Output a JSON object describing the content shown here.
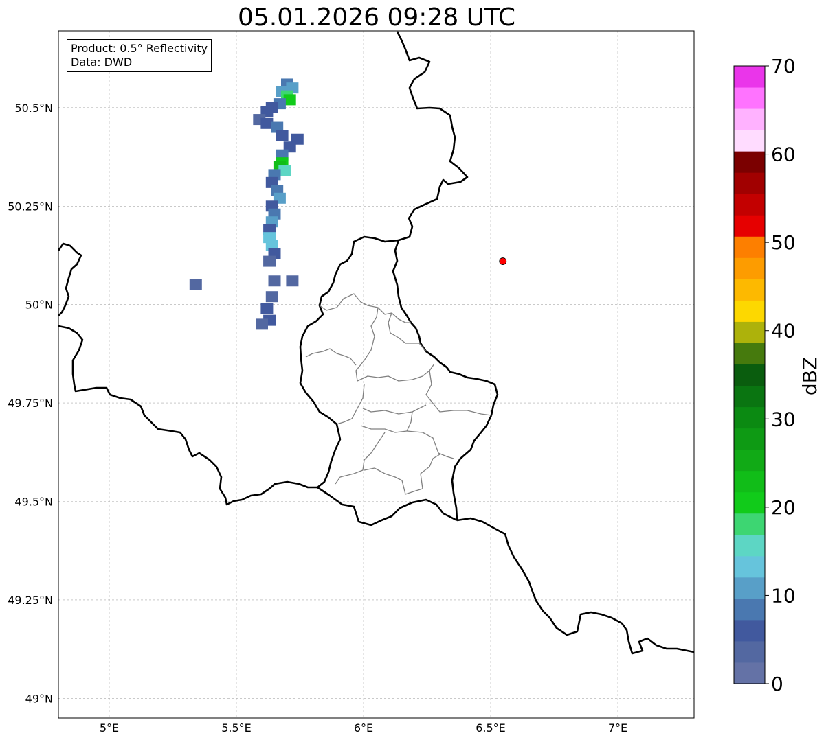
{
  "title": "05.01.2026 09:28 UTC",
  "info": {
    "product": "Product: 0.5° Reflectivity",
    "data": "Data: DWD"
  },
  "map_extent": {
    "lon": [
      4.8,
      7.3
    ],
    "lat": [
      48.95,
      50.695
    ]
  },
  "lon_ticks": [
    {
      "value": 5.0,
      "label": "5°E"
    },
    {
      "value": 5.5,
      "label": "5.5°E"
    },
    {
      "value": 6.0,
      "label": "6°E"
    },
    {
      "value": 6.5,
      "label": "6.5°E"
    },
    {
      "value": 7.0,
      "label": "7°E"
    }
  ],
  "lat_ticks": [
    {
      "value": 49.0,
      "label": "49°N"
    },
    {
      "value": 49.25,
      "label": "49.25°N"
    },
    {
      "value": 49.5,
      "label": "49.5°N"
    },
    {
      "value": 49.75,
      "label": "49.75°N"
    },
    {
      "value": 50.0,
      "label": "50°N"
    },
    {
      "value": 50.25,
      "label": "50.25°N"
    },
    {
      "value": 50.5,
      "label": "50.5°N"
    }
  ],
  "marker": {
    "name": "radar-site",
    "lon": 6.548,
    "lat": 50.11,
    "color": "#ff0000"
  },
  "colorbar": {
    "label": "dBZ",
    "min": 0,
    "max": 70,
    "step": 2.5,
    "tick_labels": [
      "0",
      "10",
      "20",
      "30",
      "40",
      "50",
      "60",
      "70"
    ],
    "colors": [
      "#6472a6",
      "#5368a1",
      "#41599e",
      "#4a78b0",
      "#589fc8",
      "#66c4dc",
      "#5dd6c4",
      "#3dd672",
      "#11cb1a",
      "#11bd18",
      "#11aa16",
      "#0e9a14",
      "#0b8a12",
      "#0a7511",
      "#0a5d0e",
      "#467a0d",
      "#adb20b",
      "#fdd800",
      "#fdb900",
      "#fd9c00",
      "#fd7f00",
      "#e60000",
      "#c30000",
      "#a10000",
      "#7b0000",
      "#ffdcff",
      "#ffb2ff",
      "#ff73ff",
      "#ea35ea"
    ]
  },
  "reflectivity_cells": [
    {
      "lon": 5.7,
      "lat": 50.56,
      "v": 8
    },
    {
      "lon": 5.72,
      "lat": 50.55,
      "v": 12
    },
    {
      "lon": 5.68,
      "lat": 50.54,
      "v": 10
    },
    {
      "lon": 5.7,
      "lat": 50.53,
      "v": 18
    },
    {
      "lon": 5.71,
      "lat": 50.52,
      "v": 20
    },
    {
      "lon": 5.67,
      "lat": 50.51,
      "v": 9
    },
    {
      "lon": 5.64,
      "lat": 50.5,
      "v": 6
    },
    {
      "lon": 5.62,
      "lat": 50.49,
      "v": 5
    },
    {
      "lon": 5.59,
      "lat": 50.47,
      "v": 4
    },
    {
      "lon": 5.62,
      "lat": 50.46,
      "v": 6
    },
    {
      "lon": 5.66,
      "lat": 50.45,
      "v": 8
    },
    {
      "lon": 5.68,
      "lat": 50.43,
      "v": 7
    },
    {
      "lon": 5.74,
      "lat": 50.42,
      "v": 5
    },
    {
      "lon": 5.71,
      "lat": 50.4,
      "v": 6
    },
    {
      "lon": 5.68,
      "lat": 50.38,
      "v": 9
    },
    {
      "lon": 5.68,
      "lat": 50.36,
      "v": 22
    },
    {
      "lon": 5.67,
      "lat": 50.35,
      "v": 24
    },
    {
      "lon": 5.69,
      "lat": 50.34,
      "v": 15
    },
    {
      "lon": 5.65,
      "lat": 50.33,
      "v": 8
    },
    {
      "lon": 5.64,
      "lat": 50.31,
      "v": 6
    },
    {
      "lon": 5.66,
      "lat": 50.29,
      "v": 9
    },
    {
      "lon": 5.67,
      "lat": 50.27,
      "v": 12
    },
    {
      "lon": 5.64,
      "lat": 50.25,
      "v": 6
    },
    {
      "lon": 5.65,
      "lat": 50.23,
      "v": 9
    },
    {
      "lon": 5.64,
      "lat": 50.21,
      "v": 11
    },
    {
      "lon": 5.63,
      "lat": 50.19,
      "v": 5
    },
    {
      "lon": 5.63,
      "lat": 50.17,
      "v": 13
    },
    {
      "lon": 5.64,
      "lat": 50.15,
      "v": 14
    },
    {
      "lon": 5.65,
      "lat": 50.13,
      "v": 7
    },
    {
      "lon": 5.63,
      "lat": 50.11,
      "v": 4
    },
    {
      "lon": 5.65,
      "lat": 50.06,
      "v": 3
    },
    {
      "lon": 5.64,
      "lat": 50.02,
      "v": 4
    },
    {
      "lon": 5.62,
      "lat": 49.99,
      "v": 5
    },
    {
      "lon": 5.63,
      "lat": 49.96,
      "v": 6
    },
    {
      "lon": 5.6,
      "lat": 49.95,
      "v": 4
    },
    {
      "lon": 5.34,
      "lat": 50.05,
      "v": 3
    },
    {
      "lon": 5.72,
      "lat": 50.06,
      "v": 3
    }
  ]
}
